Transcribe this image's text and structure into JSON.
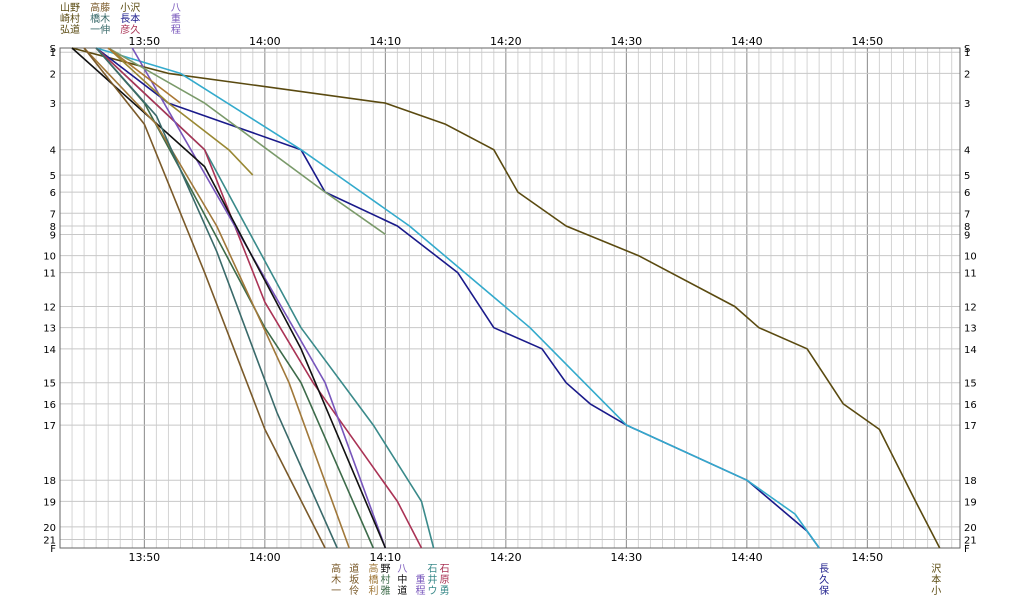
{
  "chart_data": {
    "type": "line",
    "title": "",
    "xlabel": "",
    "ylabel": "",
    "grid": true,
    "time_range": [
      "13:42",
      "14:56"
    ],
    "x_ticks": [
      "13:50",
      "14:00",
      "14:10",
      "14:20",
      "14:30",
      "14:40",
      "14:50"
    ],
    "y_ticks": [
      "S",
      "1",
      "2",
      "3",
      "4",
      "5",
      "6",
      "7",
      "8",
      "9",
      "10",
      "11",
      "12",
      "13",
      "14",
      "15",
      "16",
      "17",
      "18",
      "19",
      "20",
      "21",
      "F"
    ],
    "y_positions": [
      0,
      0.5,
      3,
      6.5,
      12,
      15,
      17,
      19.5,
      21,
      22,
      24.5,
      26.5,
      30.5,
      33,
      35.5,
      39.5,
      42,
      44.5,
      51,
      53.5,
      56.5,
      58,
      59
    ],
    "series": [
      {
        "color": "#5a4a10",
        "x": [
          "13:44",
          "13:52",
          "14:10",
          "14:15",
          "14:19",
          "14:21",
          "14:25",
          "14:31",
          "14:39",
          "14:41",
          "14:45",
          "14:48",
          "14:51",
          "14:54",
          "14:56"
        ],
        "y": [
          0,
          3,
          6.5,
          9,
          12,
          17,
          21,
          24.5,
          30.5,
          33,
          35.5,
          42,
          45,
          53.5,
          59
        ]
      },
      {
        "color": "#1a1a8a",
        "x": [
          "13:46",
          "13:52",
          "14:03",
          "14:05",
          "14:11",
          "14:16",
          "14:19",
          "14:23",
          "14:25",
          "14:27",
          "14:30",
          "14:40",
          "14:45",
          "14:46"
        ],
        "y": [
          0,
          6.5,
          12,
          17,
          21,
          26.5,
          33,
          35.5,
          39.5,
          42,
          44.5,
          51,
          57,
          59
        ]
      },
      {
        "color": "#33aacc",
        "x": [
          "13:46",
          "13:53",
          "14:03",
          "14:06",
          "14:12",
          "14:22",
          "14:30",
          "14:40",
          "14:44",
          "14:46"
        ],
        "y": [
          0,
          3,
          12,
          15,
          21,
          33,
          44.5,
          51,
          55,
          59
        ]
      },
      {
        "color": "#3a8a8a",
        "x": [
          "13:46",
          "13:55",
          "14:03",
          "14:09",
          "14:13",
          "14:14"
        ],
        "y": [
          0,
          12,
          33,
          44.5,
          53.5,
          59
        ]
      },
      {
        "color": "#aa3355",
        "x": [
          "13:46",
          "13:55",
          "14:00",
          "14:04",
          "14:11",
          "14:13"
        ],
        "y": [
          0,
          12,
          30,
          39.5,
          53.5,
          59
        ]
      },
      {
        "color": "#7755bb",
        "x": [
          "13:49",
          "14:05",
          "14:10"
        ],
        "y": [
          0,
          39.5,
          59
        ]
      },
      {
        "color": "#111111",
        "x": [
          "13:44",
          "13:55",
          "14:03",
          "14:10"
        ],
        "y": [
          0,
          14,
          35.5,
          59
        ]
      },
      {
        "color": "#3d6b4a",
        "x": [
          "13:46",
          "13:50",
          "13:54",
          "14:00",
          "14:03",
          "14:09"
        ],
        "y": [
          0,
          6.5,
          17,
          33,
          39.5,
          59
        ]
      },
      {
        "color": "#a0783a",
        "x": [
          "13:45",
          "13:51",
          "13:56",
          "14:02",
          "14:07"
        ],
        "y": [
          0,
          9,
          21,
          39.5,
          59
        ]
      },
      {
        "color": "#7a5a2a",
        "x": [
          "13:45",
          "13:50",
          "13:55",
          "14:00",
          "14:05"
        ],
        "y": [
          0,
          9,
          26.5,
          45,
          59
        ]
      },
      {
        "color": "#3a6a6a",
        "x": [
          "13:46",
          "13:51",
          "13:56",
          "14:01",
          "14:06"
        ],
        "y": [
          0,
          8,
          24,
          43,
          59
        ]
      },
      {
        "color": "#998833",
        "x": [
          "13:47",
          "13:52",
          "13:57",
          "13:59"
        ],
        "y": [
          0,
          6.5,
          12,
          15
        ]
      },
      {
        "color": "#7a9a6a",
        "x": [
          "13:47",
          "13:55",
          "14:05",
          "14:10"
        ],
        "y": [
          0,
          6.5,
          17,
          22
        ]
      },
      {
        "color": "#aa7733",
        "x": [
          "13:47",
          "13:53"
        ],
        "y": [
          0,
          6.5
        ]
      }
    ],
    "top_labels": [
      {
        "text": "山野",
        "x": "13:43",
        "row": 0,
        "color": "#5a4a10"
      },
      {
        "text": "崎村",
        "x": "13:43",
        "row": 1,
        "color": "#5a4a10"
      },
      {
        "text": "弘道",
        "x": "13:43",
        "row": 2,
        "color": "#5a4a10"
      },
      {
        "text": "高藤",
        "x": "13:45.5",
        "row": 0,
        "color": "#7a5a2a"
      },
      {
        "text": "橋木",
        "x": "13:45.5",
        "row": 1,
        "color": "#3a6a6a"
      },
      {
        "text": "一伸",
        "x": "13:45.5",
        "row": 2,
        "color": "#3a6a6a"
      },
      {
        "text": "小沢",
        "x": "13:48",
        "row": 0,
        "color": "#5a4a10"
      },
      {
        "text": "長本",
        "x": "13:48",
        "row": 1,
        "color": "#1a1a8a"
      },
      {
        "text": "彦久",
        "x": "13:48",
        "row": 2,
        "color": "#aa3355"
      },
      {
        "text": "八",
        "x": "13:52.2",
        "row": 0,
        "color": "#7755bb"
      },
      {
        "text": "重",
        "x": "13:52.2",
        "row": 1,
        "color": "#7755bb"
      },
      {
        "text": "程",
        "x": "13:52.2",
        "row": 2,
        "color": "#7755bb"
      }
    ],
    "bottom_labels": [
      {
        "text": "高",
        "x": "14:05.5",
        "row": 0,
        "color": "#7a5a2a"
      },
      {
        "text": "木",
        "x": "14:05.5",
        "row": 1,
        "color": "#7a5a2a"
      },
      {
        "text": "一",
        "x": "14:05.5",
        "row": 2,
        "color": "#7a5a2a"
      },
      {
        "text": "道",
        "x": "14:07",
        "row": 0,
        "color": "#7a5a2a"
      },
      {
        "text": "坂",
        "x": "14:07",
        "row": 1,
        "color": "#7a5a2a"
      },
      {
        "text": "伶",
        "x": "14:07",
        "row": 2,
        "color": "#7a5a2a"
      },
      {
        "text": "高",
        "x": "14:08.6",
        "row": 0,
        "color": "#a0783a"
      },
      {
        "text": "橋",
        "x": "14:08.6",
        "row": 1,
        "color": "#a0783a"
      },
      {
        "text": "利",
        "x": "14:08.6",
        "row": 2,
        "color": "#a0783a"
      },
      {
        "text": "野",
        "x": "14:09.6",
        "row": 0,
        "color": "#111111"
      },
      {
        "text": "村",
        "x": "14:09.6",
        "row": 1,
        "color": "#3d6b4a"
      },
      {
        "text": "雅",
        "x": "14:09.6",
        "row": 2,
        "color": "#3d6b4a"
      },
      {
        "text": "八",
        "x": "14:11",
        "row": 0,
        "color": "#7755bb"
      },
      {
        "text": "中",
        "x": "14:11",
        "row": 1,
        "color": "#111111"
      },
      {
        "text": "道",
        "x": "14:11",
        "row": 2,
        "color": "#111111"
      },
      {
        "text": "重",
        "x": "14:12.5",
        "row": 1,
        "color": "#7755bb"
      },
      {
        "text": "程",
        "x": "14:12.5",
        "row": 2,
        "color": "#7755bb"
      },
      {
        "text": "石",
        "x": "14:14.5",
        "row": 0,
        "color": "#aa3355"
      },
      {
        "text": "原",
        "x": "14:14.5",
        "row": 1,
        "color": "#aa3355"
      },
      {
        "text": "勇",
        "x": "14:14.5",
        "row": 2,
        "color": "#3a8a8a"
      },
      {
        "text": "石",
        "x": "14:13.5",
        "row": 0,
        "color": "#3a8a8a"
      },
      {
        "text": "井",
        "x": "14:13.5",
        "row": 1,
        "color": "#3a8a8a"
      },
      {
        "text": "ウ",
        "x": "14:13.5",
        "row": 2,
        "color": "#3a8a8a"
      },
      {
        "text": "長",
        "x": "14:46",
        "row": 0,
        "color": "#1a1a8a"
      },
      {
        "text": "久",
        "x": "14:46",
        "row": 1,
        "color": "#1a1a8a"
      },
      {
        "text": "保",
        "x": "14:46",
        "row": 2,
        "color": "#1a1a8a"
      },
      {
        "text": "沢",
        "x": "14:55.3",
        "row": 0,
        "color": "#5a4a10"
      },
      {
        "text": "本",
        "x": "14:55.3",
        "row": 1,
        "color": "#5a4a10"
      },
      {
        "text": "小",
        "x": "14:55.3",
        "row": 2,
        "color": "#5a4a10"
      }
    ]
  }
}
